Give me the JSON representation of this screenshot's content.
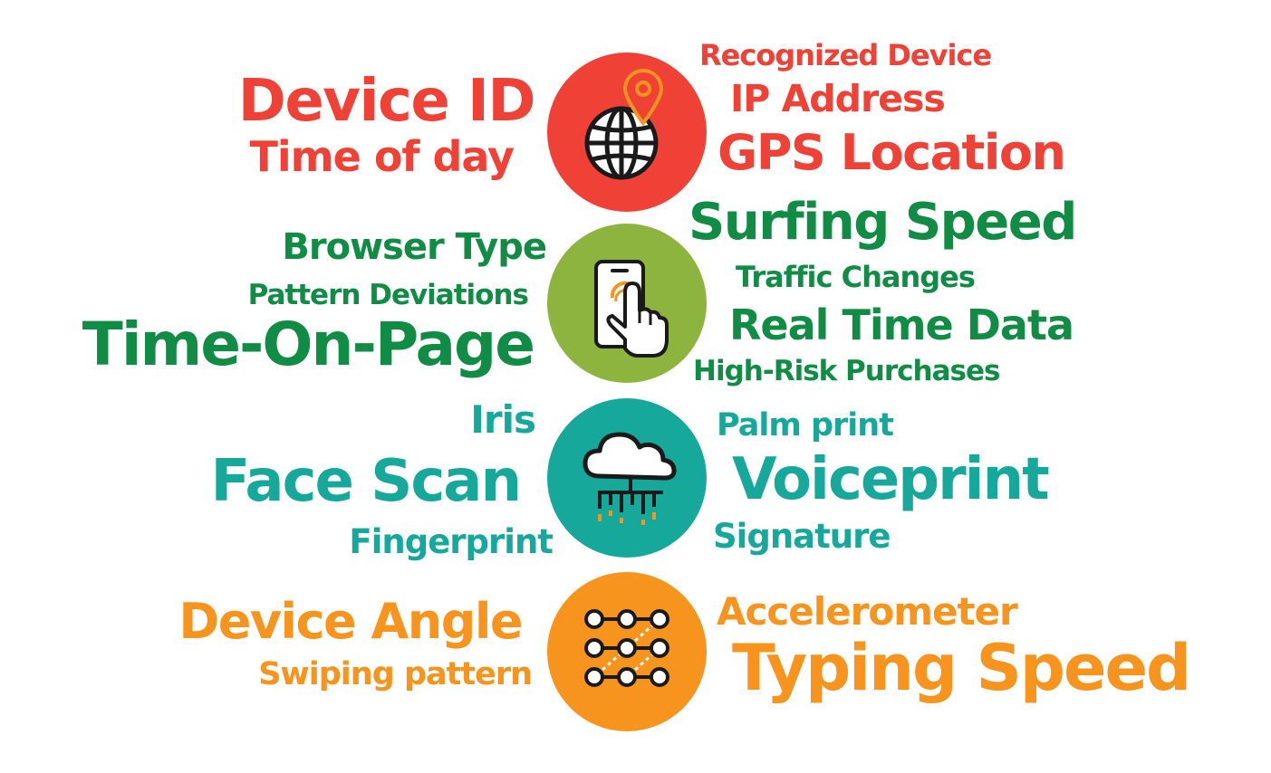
{
  "colors": {
    "location": "#ef4136",
    "behavior_text": "#118c45",
    "behavior_circle": "#8db43e",
    "biometric": "#15a89b",
    "motion": "#f7941e",
    "icon_stroke": "#1a1a1a",
    "icon_fill": "#ffffff",
    "icon_accent": "#f7941e"
  },
  "groups": [
    {
      "id": "location",
      "icon": "globe-pin-icon",
      "left_terms": [
        "Device ID",
        "Time of day"
      ],
      "right_terms": [
        "Recognized Device",
        "IP Address",
        "GPS Location"
      ]
    },
    {
      "id": "behavior",
      "icon": "touch-phone-icon",
      "left_terms": [
        "Browser Type",
        "Pattern Deviations",
        "Time-On-Page"
      ],
      "right_terms": [
        "Surfing Speed",
        "Traffic Changes",
        "Real Time Data",
        "High-Risk Purchases"
      ]
    },
    {
      "id": "biometric",
      "icon": "cloud-data-icon",
      "left_terms": [
        "Iris",
        "Face Scan",
        "Fingerprint"
      ],
      "right_terms": [
        "Palm print",
        "Voiceprint",
        "Signature"
      ]
    },
    {
      "id": "motion",
      "icon": "pattern-grid-icon",
      "left_terms": [
        "Device Angle",
        "Swiping pattern"
      ],
      "right_terms": [
        "Accelerometer",
        "Typing Speed"
      ]
    }
  ]
}
